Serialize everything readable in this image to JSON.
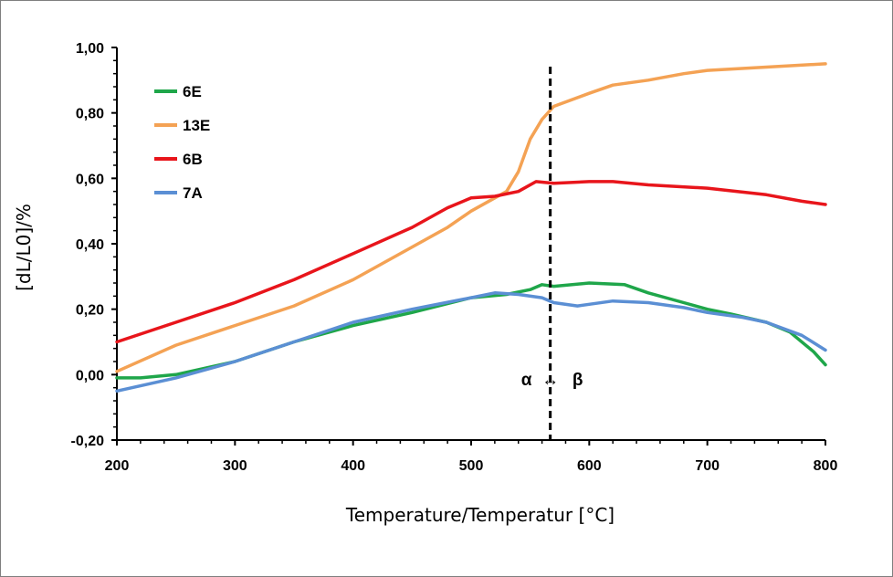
{
  "chart_data": {
    "type": "line",
    "title": "",
    "xlabel": "Temperature/Temperatur [°C]",
    "ylabel": "[dL/L0]/%",
    "xlim": [
      200,
      800
    ],
    "ylim": [
      -0.2,
      1.0
    ],
    "x_ticks": [
      "200",
      "300",
      "400",
      "500",
      "600",
      "700",
      "800"
    ],
    "y_ticks": [
      "-0,20",
      "0,00",
      "0,20",
      "0,40",
      "0,60",
      "0,80",
      "1,00"
    ],
    "legend_position": "top-left",
    "grid": false,
    "annotation": {
      "text_left": "α",
      "text_right": "β",
      "arrow": "↔",
      "vertical_line_x": 567
    },
    "series": [
      {
        "name": "6E",
        "color": "#1fa64a",
        "points": [
          [
            200,
            -0.01
          ],
          [
            220,
            -0.01
          ],
          [
            250,
            0.0
          ],
          [
            300,
            0.04
          ],
          [
            350,
            0.1
          ],
          [
            400,
            0.15
          ],
          [
            450,
            0.19
          ],
          [
            500,
            0.235
          ],
          [
            530,
            0.245
          ],
          [
            550,
            0.26
          ],
          [
            560,
            0.275
          ],
          [
            570,
            0.27
          ],
          [
            600,
            0.28
          ],
          [
            630,
            0.275
          ],
          [
            650,
            0.25
          ],
          [
            680,
            0.22
          ],
          [
            700,
            0.2
          ],
          [
            720,
            0.185
          ],
          [
            750,
            0.16
          ],
          [
            770,
            0.13
          ],
          [
            790,
            0.07
          ],
          [
            800,
            0.03
          ]
        ]
      },
      {
        "name": "13E",
        "color": "#f4a254",
        "points": [
          [
            200,
            0.01
          ],
          [
            250,
            0.09
          ],
          [
            300,
            0.15
          ],
          [
            350,
            0.21
          ],
          [
            400,
            0.29
          ],
          [
            450,
            0.39
          ],
          [
            480,
            0.45
          ],
          [
            500,
            0.5
          ],
          [
            520,
            0.54
          ],
          [
            530,
            0.56
          ],
          [
            540,
            0.62
          ],
          [
            550,
            0.72
          ],
          [
            560,
            0.78
          ],
          [
            570,
            0.82
          ],
          [
            600,
            0.86
          ],
          [
            620,
            0.885
          ],
          [
            650,
            0.9
          ],
          [
            680,
            0.92
          ],
          [
            700,
            0.93
          ],
          [
            750,
            0.94
          ],
          [
            800,
            0.95
          ]
        ]
      },
      {
        "name": "6B",
        "color": "#e8151b",
        "points": [
          [
            200,
            0.1
          ],
          [
            250,
            0.16
          ],
          [
            300,
            0.22
          ],
          [
            350,
            0.29
          ],
          [
            400,
            0.37
          ],
          [
            450,
            0.45
          ],
          [
            480,
            0.51
          ],
          [
            500,
            0.54
          ],
          [
            520,
            0.545
          ],
          [
            540,
            0.56
          ],
          [
            555,
            0.59
          ],
          [
            570,
            0.585
          ],
          [
            600,
            0.59
          ],
          [
            620,
            0.59
          ],
          [
            650,
            0.58
          ],
          [
            700,
            0.57
          ],
          [
            750,
            0.55
          ],
          [
            780,
            0.53
          ],
          [
            800,
            0.52
          ]
        ]
      },
      {
        "name": "7A",
        "color": "#5b8fd4",
        "points": [
          [
            200,
            -0.05
          ],
          [
            250,
            -0.01
          ],
          [
            300,
            0.04
          ],
          [
            350,
            0.1
          ],
          [
            400,
            0.16
          ],
          [
            450,
            0.2
          ],
          [
            500,
            0.235
          ],
          [
            520,
            0.25
          ],
          [
            540,
            0.245
          ],
          [
            560,
            0.235
          ],
          [
            570,
            0.22
          ],
          [
            590,
            0.21
          ],
          [
            600,
            0.215
          ],
          [
            620,
            0.225
          ],
          [
            650,
            0.22
          ],
          [
            680,
            0.205
          ],
          [
            700,
            0.19
          ],
          [
            730,
            0.175
          ],
          [
            750,
            0.16
          ],
          [
            780,
            0.12
          ],
          [
            800,
            0.075
          ]
        ]
      }
    ]
  }
}
